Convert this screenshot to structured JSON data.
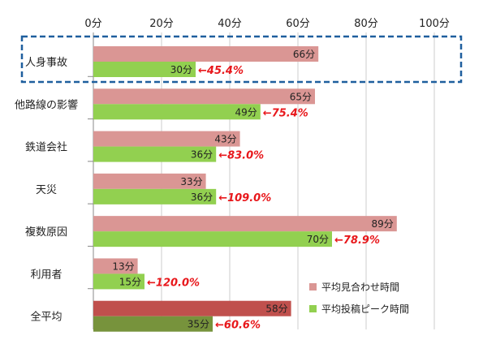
{
  "chart_data": {
    "type": "bar",
    "orientation": "horizontal",
    "title": "",
    "xlabel": "",
    "ylabel": "",
    "xlim": [
      0,
      100
    ],
    "ticks": [
      0,
      20,
      40,
      60,
      80,
      100
    ],
    "tick_labels": [
      "0分",
      "20分",
      "40分",
      "60分",
      "80分",
      "100分"
    ],
    "grid": true,
    "legend_position": "bottom-right",
    "categories": [
      "人身事故",
      "他路線の影響",
      "鉄道会社",
      "天災",
      "複数原因",
      "利用者",
      "全平均"
    ],
    "series": [
      {
        "name": "平均見合わせ時間",
        "values": [
          66,
          65,
          43,
          33,
          89,
          13,
          58
        ],
        "value_labels": [
          "66分",
          "65分",
          "43分",
          "33分",
          "89分",
          "13分",
          "58分"
        ],
        "color": "#da9694",
        "highlight_color": "#c0504d"
      },
      {
        "name": "平均投稿ピーク時間",
        "values": [
          30,
          49,
          36,
          36,
          70,
          15,
          35
        ],
        "value_labels": [
          "30分",
          "49分",
          "36分",
          "36分",
          "70分",
          "15分",
          "35分"
        ],
        "color": "#92d050",
        "highlight_color": "#77933c"
      }
    ],
    "ratio_labels": [
      "←45.4%",
      "←75.4%",
      "←83.0%",
      "←109.0%",
      "←78.9%",
      "←120.0%",
      "←60.6%"
    ],
    "highlighted_category": "人身事故",
    "colors": {
      "ratio_text": "#e8171b",
      "highlight_box": "#1f5f9e",
      "grid": "#cccccc"
    }
  }
}
